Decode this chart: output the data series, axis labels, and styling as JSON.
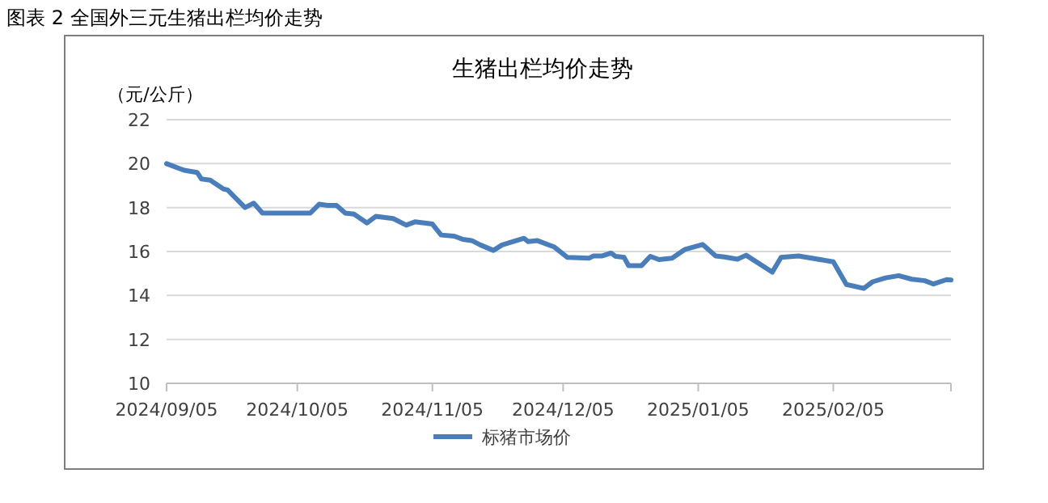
{
  "chart_data": {
    "type": "line",
    "title": "图表 2  全国外三元生猪出栏均价走势",
    "subtitle": "生猪出栏均价走势",
    "ylabel": "（元/公斤）",
    "x": [
      "2024-09-05",
      "2024-09-09",
      "2024-09-12",
      "2024-09-13",
      "2024-09-15",
      "2024-09-18",
      "2024-09-19",
      "2024-09-23",
      "2024-09-25",
      "2024-09-27",
      "2024-10-08",
      "2024-10-10",
      "2024-10-12",
      "2024-10-14",
      "2024-10-16",
      "2024-10-18",
      "2024-10-21",
      "2024-10-23",
      "2024-10-27",
      "2024-10-30",
      "2024-11-01",
      "2024-11-05",
      "2024-11-07",
      "2024-11-10",
      "2024-11-12",
      "2024-11-14",
      "2024-11-16",
      "2024-11-19",
      "2024-11-21",
      "2024-11-26",
      "2024-11-27",
      "2024-11-29",
      "2024-12-03",
      "2024-12-06",
      "2024-12-11",
      "2024-12-12",
      "2024-12-14",
      "2024-12-16",
      "2024-12-17",
      "2024-12-19",
      "2024-12-20",
      "2024-12-23",
      "2024-12-25",
      "2024-12-27",
      "2024-12-30",
      "2025-01-02",
      "2025-01-06",
      "2025-01-09",
      "2025-01-11",
      "2025-01-14",
      "2025-01-16",
      "2025-01-22",
      "2025-01-24",
      "2025-01-28",
      "2025-02-05",
      "2025-02-08",
      "2025-02-12",
      "2025-02-14",
      "2025-02-17",
      "2025-02-20",
      "2025-02-23",
      "2025-02-26",
      "2025-02-28",
      "2025-03-03",
      "2025-03-04"
    ],
    "series": [
      {
        "name": "标猪市场价",
        "color": "#4a7ebb",
        "values": [
          20.0,
          19.7,
          19.6,
          19.3,
          19.25,
          18.85,
          18.8,
          18.0,
          18.2,
          17.75,
          17.75,
          18.15,
          18.1,
          18.1,
          17.75,
          17.7,
          17.3,
          17.6,
          17.5,
          17.2,
          17.35,
          17.25,
          16.75,
          16.7,
          16.55,
          16.5,
          16.3,
          16.05,
          16.3,
          16.6,
          16.45,
          16.5,
          16.2,
          15.73,
          15.7,
          15.8,
          15.8,
          15.93,
          15.78,
          15.73,
          15.36,
          15.36,
          15.78,
          15.63,
          15.7,
          16.1,
          16.32,
          15.8,
          15.75,
          15.65,
          15.83,
          15.06,
          15.73,
          15.8,
          15.53,
          14.5,
          14.32,
          14.62,
          14.8,
          14.9,
          14.74,
          14.67,
          14.52,
          14.72,
          14.7
        ]
      }
    ],
    "xlim": [
      "2024-09-05",
      "2025-03-04"
    ],
    "xticks": [
      {
        "value": "2024-09-05",
        "label": "2024/09/05"
      },
      {
        "value": "2024-10-05",
        "label": "2024/10/05"
      },
      {
        "value": "2024-11-05",
        "label": "2024/11/05"
      },
      {
        "value": "2024-12-05",
        "label": "2024/12/05"
      },
      {
        "value": "2025-01-05",
        "label": "2025/01/05"
      },
      {
        "value": "2025-02-05",
        "label": "2025/02/05"
      }
    ],
    "ylim": [
      10,
      22
    ],
    "yticks": [
      10,
      12,
      14,
      16,
      18,
      20,
      22
    ],
    "grid": "y",
    "legend": "bottom",
    "marker": "none",
    "line_style": "solid"
  }
}
